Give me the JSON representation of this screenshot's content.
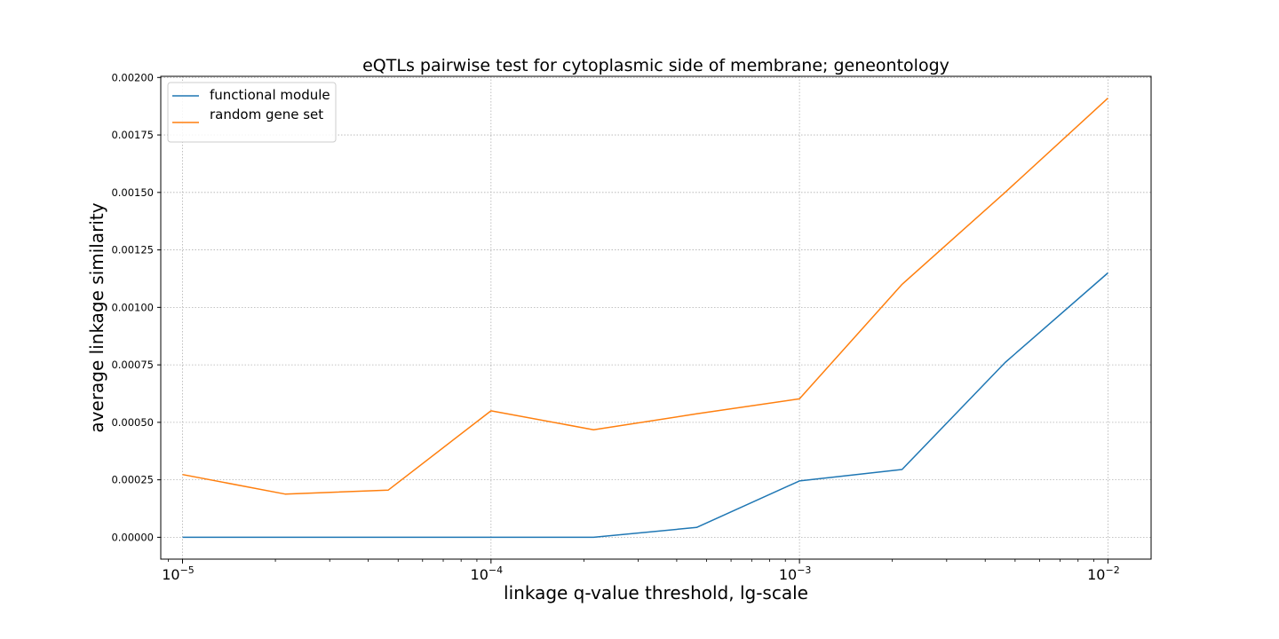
{
  "chart_data": {
    "type": "line",
    "title": "eQTLs pairwise test for cytoplasmic side of membrane; geneontology",
    "xlabel": "linkage q-value threshold, lg-scale",
    "ylabel": "average linkage similarity",
    "xscale": "log",
    "xlim": [
      8.5e-06,
      0.0138
    ],
    "ylim": [
      -9.5e-05,
      0.002005
    ],
    "grid": true,
    "legend_position": "top-left",
    "x": [
      1e-05,
      2.15e-05,
      4.64e-05,
      0.0001,
      0.000215,
      0.000464,
      0.001,
      0.00215,
      0.00464,
      0.01
    ],
    "series": [
      {
        "name": "functional module",
        "color": "#1f77b4",
        "values": [
          0.0,
          0.0,
          0.0,
          0.0,
          0.0,
          4.3e-05,
          0.000245,
          0.000295,
          0.00076,
          0.00115
        ]
      },
      {
        "name": "random gene set",
        "color": "#ff7f0e",
        "values": [
          0.000273,
          0.000188,
          0.000205,
          0.00055,
          0.000468,
          0.000537,
          0.000602,
          0.0011,
          0.0015,
          0.00191
        ]
      }
    ],
    "yticks": [
      0.0,
      0.00025,
      0.0005,
      0.00075,
      0.001,
      0.00125,
      0.0015,
      0.00175,
      0.002
    ],
    "ytick_labels": [
      "0.00000",
      "0.00025",
      "0.00050",
      "0.00075",
      "0.00100",
      "0.00125",
      "0.00150",
      "0.00175",
      "0.00200"
    ],
    "xticks": [
      1e-05,
      0.0001,
      0.001,
      0.01
    ],
    "xtick_labels": [
      {
        "base": "10",
        "exp": "−5"
      },
      {
        "base": "10",
        "exp": "−4"
      },
      {
        "base": "10",
        "exp": "−3"
      },
      {
        "base": "10",
        "exp": "−2"
      }
    ]
  }
}
